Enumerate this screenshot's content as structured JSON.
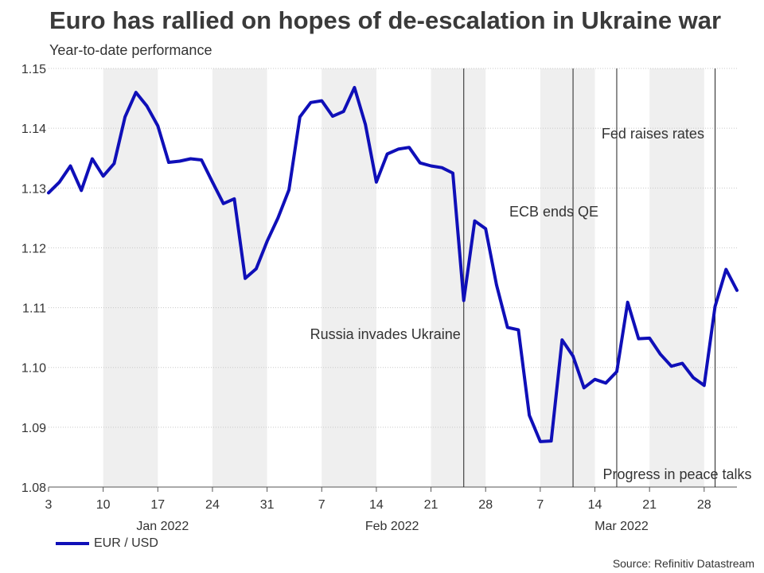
{
  "title": "Euro has rallied on hopes of de-escalation in Ukraine war",
  "subtitle": "Year-to-date performance",
  "source": "Source: Refinitiv Datastream",
  "colors": {
    "line": "#0f0fb8",
    "shade": "#efefef",
    "grid": "#c8c8c8"
  },
  "chart_data": {
    "type": "line",
    "title": "Euro has rallied on hopes of de-escalation in Ukraine war",
    "subtitle": "Year-to-date performance",
    "series": [
      {
        "name": "EUR / USD",
        "x": [
          0,
          1,
          2,
          3,
          4,
          5,
          6,
          7,
          8,
          9,
          10,
          11,
          12,
          13,
          14,
          15,
          16,
          17,
          18,
          19,
          20,
          21,
          22,
          23,
          24,
          25,
          26,
          27,
          28,
          29,
          30,
          31,
          32,
          33,
          34,
          35,
          36,
          37,
          38,
          39,
          40,
          41,
          42,
          43,
          44,
          45,
          46,
          47,
          48,
          49,
          50,
          51,
          52,
          53,
          54,
          55,
          56,
          57,
          58,
          59,
          60,
          61,
          62,
          63
        ],
        "values": [
          1.1292,
          1.131,
          1.1337,
          1.1296,
          1.1349,
          1.132,
          1.1341,
          1.1419,
          1.146,
          1.1437,
          1.1404,
          1.1343,
          1.1345,
          1.1349,
          1.1347,
          1.131,
          1.1274,
          1.1282,
          1.1149,
          1.1165,
          1.1211,
          1.125,
          1.1297,
          1.1419,
          1.1443,
          1.1446,
          1.142,
          1.1428,
          1.1468,
          1.1406,
          1.131,
          1.1357,
          1.1365,
          1.1368,
          1.1342,
          1.1337,
          1.1334,
          1.1325,
          1.1112,
          1.1245,
          1.1232,
          1.1138,
          1.1067,
          1.1063,
          1.092,
          1.0876,
          1.0877,
          1.1046,
          1.1019,
          1.0966,
          1.098,
          1.0974,
          1.0993,
          1.1109,
          1.1048,
          1.1049,
          1.1022,
          1.1002,
          1.1007,
          1.0983,
          1.097,
          1.1102,
          1.1164,
          1.1129
        ]
      }
    ],
    "ylim": [
      1.08,
      1.15
    ],
    "xlim": [
      0,
      63
    ],
    "y_ticks": [
      "1.08",
      "1.09",
      "1.10",
      "1.11",
      "1.12",
      "1.13",
      "1.14",
      "1.15"
    ],
    "x_ticks": [
      {
        "index": 0,
        "label": "3"
      },
      {
        "index": 5,
        "label": "10"
      },
      {
        "index": 10,
        "label": "17"
      },
      {
        "index": 15,
        "label": "24"
      },
      {
        "index": 20,
        "label": "31"
      },
      {
        "index": 25,
        "label": "7"
      },
      {
        "index": 30,
        "label": "14"
      },
      {
        "index": 35,
        "label": "21"
      },
      {
        "index": 40,
        "label": "28"
      },
      {
        "index": 45,
        "label": "7"
      },
      {
        "index": 50,
        "label": "14"
      },
      {
        "index": 55,
        "label": "21"
      },
      {
        "index": 60,
        "label": "28"
      }
    ],
    "month_labels": [
      {
        "index": 10,
        "label": "Jan 2022"
      },
      {
        "index": 31,
        "label": "Feb 2022"
      },
      {
        "index": 52,
        "label": "Mar 2022"
      }
    ],
    "shaded_weeks": [
      [
        5,
        10
      ],
      [
        15,
        20
      ],
      [
        25,
        30
      ],
      [
        35,
        40
      ],
      [
        45,
        50
      ],
      [
        55,
        60
      ]
    ],
    "events": [
      {
        "index": 38,
        "label": "Russia invades Ukraine"
      },
      {
        "index": 48,
        "label": "ECB ends QE"
      },
      {
        "index": 52,
        "label": "Fed raises rates"
      },
      {
        "index": 61,
        "label": "Progress in peace talks"
      }
    ],
    "legend": "bottom-left",
    "grid": true
  }
}
